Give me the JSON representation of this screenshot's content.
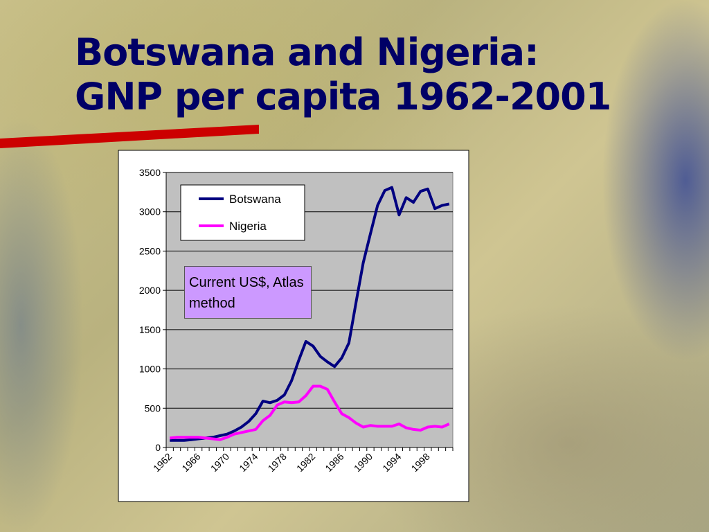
{
  "chart_data": {
    "type": "line",
    "title": [
      "Botswana and Nigeria:",
      "GNP per capita 1962-2001"
    ],
    "annotation": "Current US$, Atlas method",
    "categories": [
      "1962",
      null,
      null,
      null,
      "1966",
      null,
      null,
      null,
      "1970",
      null,
      null,
      null,
      "1974",
      null,
      null,
      null,
      "1978",
      null,
      null,
      null,
      "1982",
      null,
      null,
      null,
      "1986",
      null,
      null,
      null,
      "1990",
      null,
      null,
      null,
      "1994",
      null,
      null,
      null,
      "1998",
      null,
      null,
      null
    ],
    "series": [
      {
        "name": "Botswana",
        "color": "#000080",
        "values": [
          90,
          90,
          90,
          100,
          110,
          120,
          130,
          150,
          170,
          210,
          260,
          330,
          430,
          590,
          570,
          600,
          670,
          850,
          1110,
          1350,
          1290,
          1160,
          1090,
          1030,
          1140,
          1330,
          1850,
          2350,
          2720,
          3080,
          3270,
          3310,
          2960,
          3180,
          3120,
          3260,
          3290,
          3040,
          3080,
          3100
        ]
      },
      {
        "name": "Nigeria",
        "color": "#ff00ff",
        "values": [
          120,
          130,
          130,
          130,
          130,
          120,
          110,
          100,
          130,
          170,
          190,
          210,
          230,
          340,
          410,
          540,
          580,
          570,
          580,
          660,
          780,
          780,
          740,
          580,
          430,
          380,
          310,
          260,
          280,
          270,
          270,
          270,
          300,
          250,
          230,
          220,
          260,
          270,
          260,
          300
        ]
      }
    ],
    "ylim": [
      0,
      3500
    ],
    "yticks": [
      0,
      500,
      1000,
      1500,
      2000,
      2500,
      3000,
      3500
    ],
    "grid": true,
    "legend": "top-left"
  }
}
